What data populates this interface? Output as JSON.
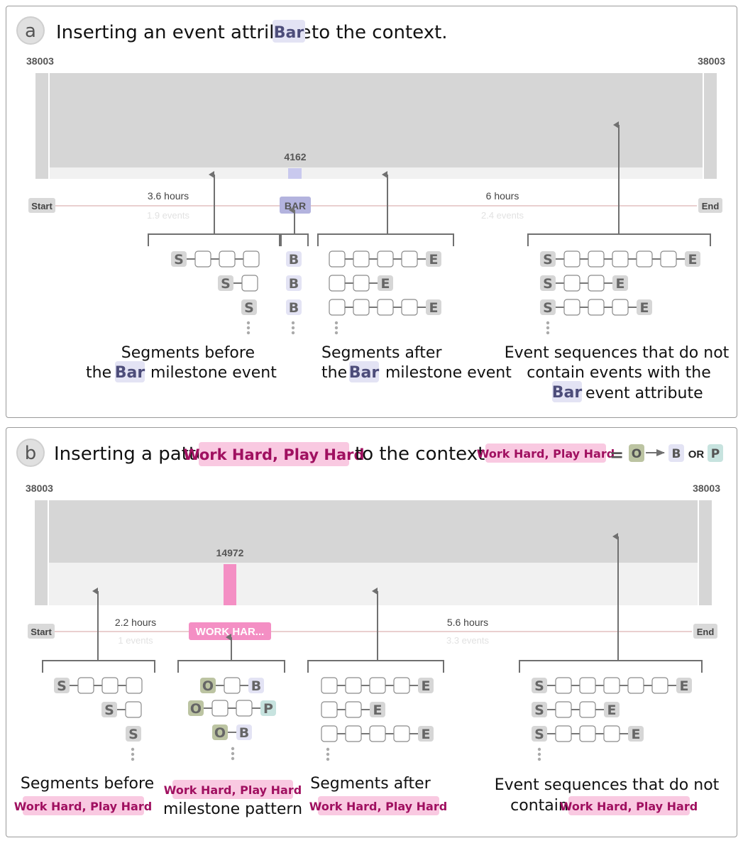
{
  "panel_a": {
    "letter": "a",
    "title_pre": "Inserting an event attribute",
    "title_attr": "Bar",
    "title_post": "to the context.",
    "left_count": "38003",
    "right_count": "38003",
    "milestone_count": "4162",
    "start_label": "Start",
    "end_label": "End",
    "milestone_label": "BAR",
    "before_hours": "3.6 hours",
    "before_events": "1.9 events",
    "after_hours": "6 hours",
    "after_events": "2.4 events",
    "cap_before_1": "Segments before",
    "cap_before_2a": "the",
    "cap_before_attr": "Bar",
    "cap_before_2b": "milestone event",
    "cap_after_1": "Segments after",
    "cap_after_2a": "the",
    "cap_after_attr": "Bar",
    "cap_after_2b": "milestone event",
    "cap_rest_1": "Event sequences that do not",
    "cap_rest_2": "contain events with the",
    "cap_rest_attr": "Bar",
    "cap_rest_3": "event attribute"
  },
  "panel_b": {
    "letter": "b",
    "title_pre": "Inserting a pattern",
    "title_pattern": "Work Hard, Play Hard",
    "title_post": "to the context.",
    "legend_pattern": "Work Hard, Play Hard",
    "legend_eq": "=",
    "legend_or": "OR",
    "left_count": "38003",
    "right_count": "38003",
    "milestone_count": "14972",
    "start_label": "Start",
    "end_label": "End",
    "milestone_label": "WORK HAR...",
    "before_hours": "2.2 hours",
    "before_events": "1 events",
    "after_hours": "5.6 hours",
    "after_events": "3.3 events",
    "cap_before_1": "Segments before",
    "cap_before_pattern": "Work Hard, Play Hard",
    "cap_mile_pattern": "Work Hard, Play Hard",
    "cap_mile_2": "milestone pattern",
    "cap_after_1": "Segments after",
    "cap_after_pattern": "Work Hard, Play Hard",
    "cap_rest_1": "Event sequences that do not",
    "cap_rest_2": "contain",
    "cap_rest_pattern": "Work Hard, Play Hard"
  },
  "tokens": {
    "start": "S",
    "end": "E",
    "bar": "B",
    "work": "O",
    "play": "P"
  },
  "colors": {
    "big_bar": "#d6d6d6",
    "light_bar": "#f1f1f1",
    "bar_purple": "#c9c9ee",
    "pattern_pink": "#f48fc4",
    "pattern_bg": "#f9c9e1",
    "attr_bg": "#e3e3f4",
    "work_green": "#bcc4a2",
    "play_teal": "#c7e3df",
    "timeline": "#e9cfcf"
  }
}
